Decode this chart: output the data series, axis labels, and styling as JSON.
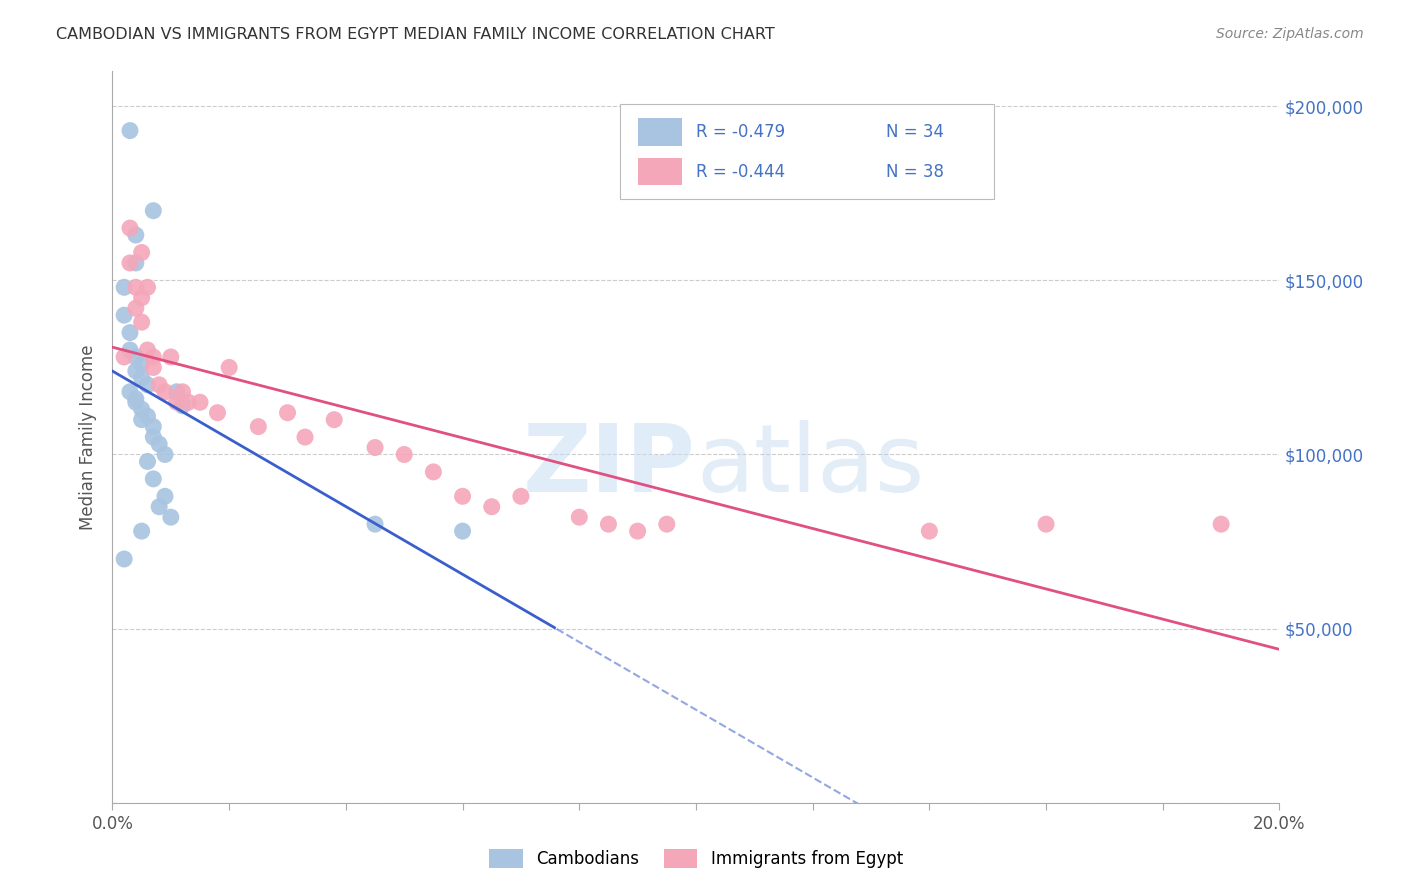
{
  "title": "CAMBODIAN VS IMMIGRANTS FROM EGYPT MEDIAN FAMILY INCOME CORRELATION CHART",
  "source": "Source: ZipAtlas.com",
  "ylabel": "Median Family Income",
  "x_min": 0.0,
  "x_max": 0.2,
  "y_min": 0,
  "y_max": 210000,
  "x_ticks": [
    0.0,
    0.02,
    0.04,
    0.06,
    0.08,
    0.1,
    0.12,
    0.14,
    0.16,
    0.18,
    0.2
  ],
  "y_ticks": [
    0,
    50000,
    100000,
    150000,
    200000
  ],
  "right_y_tick_labels": [
    "",
    "$50,000",
    "$100,000",
    "$150,000",
    "$200,000"
  ],
  "legend_R1": "-0.479",
  "legend_N1": "34",
  "legend_R2": "-0.444",
  "legend_N2": "38",
  "color_cambodian": "#a8c4e0",
  "color_egypt": "#f4a7b9",
  "color_line_cambodian": "#3a5fcd",
  "color_line_egypt": "#e05080",
  "color_r_value": "#4472c4",
  "background_color": "#ffffff",
  "watermark_zip": "ZIP",
  "watermark_atlas": "atlas",
  "cambodian_x": [
    0.003,
    0.007,
    0.004,
    0.004,
    0.002,
    0.002,
    0.003,
    0.003,
    0.004,
    0.005,
    0.004,
    0.005,
    0.006,
    0.003,
    0.004,
    0.004,
    0.005,
    0.006,
    0.005,
    0.007,
    0.011,
    0.012,
    0.007,
    0.008,
    0.009,
    0.006,
    0.007,
    0.009,
    0.008,
    0.01,
    0.005,
    0.002,
    0.045,
    0.06
  ],
  "cambodian_y": [
    193000,
    170000,
    163000,
    155000,
    148000,
    140000,
    135000,
    130000,
    128000,
    126000,
    124000,
    122000,
    120000,
    118000,
    116000,
    115000,
    113000,
    111000,
    110000,
    108000,
    118000,
    114000,
    105000,
    103000,
    100000,
    98000,
    93000,
    88000,
    85000,
    82000,
    78000,
    70000,
    80000,
    78000
  ],
  "egypt_x": [
    0.002,
    0.003,
    0.003,
    0.004,
    0.004,
    0.005,
    0.005,
    0.005,
    0.006,
    0.006,
    0.007,
    0.007,
    0.008,
    0.009,
    0.01,
    0.011,
    0.012,
    0.013,
    0.015,
    0.018,
    0.02,
    0.025,
    0.03,
    0.033,
    0.038,
    0.045,
    0.05,
    0.055,
    0.06,
    0.065,
    0.07,
    0.08,
    0.085,
    0.09,
    0.095,
    0.14,
    0.16,
    0.19
  ],
  "egypt_y": [
    128000,
    165000,
    155000,
    148000,
    142000,
    158000,
    145000,
    138000,
    148000,
    130000,
    128000,
    125000,
    120000,
    118000,
    128000,
    115000,
    118000,
    115000,
    115000,
    112000,
    125000,
    108000,
    112000,
    105000,
    110000,
    102000,
    100000,
    95000,
    88000,
    85000,
    88000,
    82000,
    80000,
    78000,
    80000,
    78000,
    80000,
    80000
  ]
}
